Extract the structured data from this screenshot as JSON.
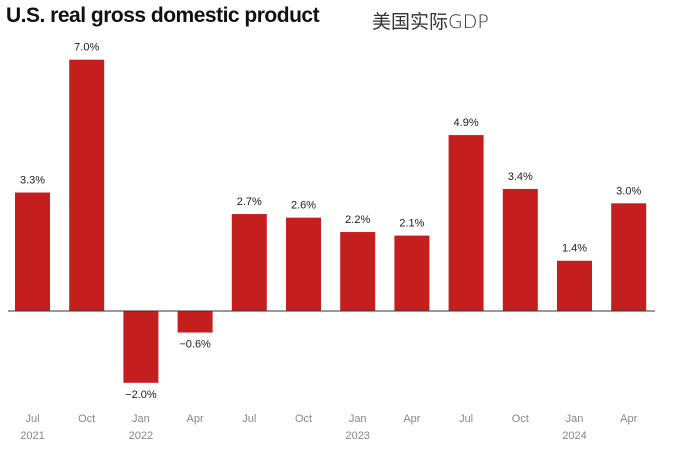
{
  "title": "U.S. real gross domestic product",
  "subtitle": "美国实际GDP",
  "chart_data": {
    "type": "bar",
    "title": "U.S. real gross domestic product",
    "subtitle": "美国实际GDP",
    "categories": [
      "Jul 2021",
      "Oct 2021",
      "Jan 2022",
      "Apr 2022",
      "Jul 2022",
      "Oct 2022",
      "Jan 2023",
      "Apr 2023",
      "Jul 2023",
      "Oct 2023",
      "Jan 2024",
      "Apr 2024"
    ],
    "tick_labels": [
      {
        "month": "Jul",
        "year": "2021"
      },
      {
        "month": "Oct",
        "year": ""
      },
      {
        "month": "Jan",
        "year": "2022"
      },
      {
        "month": "Apr",
        "year": ""
      },
      {
        "month": "Jul",
        "year": ""
      },
      {
        "month": "Oct",
        "year": ""
      },
      {
        "month": "Jan",
        "year": "2023"
      },
      {
        "month": "Apr",
        "year": ""
      },
      {
        "month": "Jul",
        "year": ""
      },
      {
        "month": "Oct",
        "year": ""
      },
      {
        "month": "Jan",
        "year": "2024"
      },
      {
        "month": "Apr",
        "year": ""
      }
    ],
    "values": [
      3.3,
      7.0,
      -2.0,
      -0.6,
      2.7,
      2.6,
      2.2,
      2.1,
      4.9,
      3.4,
      1.4,
      3.0
    ],
    "data_labels": [
      "3.3%",
      "7.0%",
      "−2.0%",
      "−0.6%",
      "2.7%",
      "2.6%",
      "2.2%",
      "2.1%",
      "4.9%",
      "3.4%",
      "1.4%",
      "3.0%"
    ],
    "xlabel": "",
    "ylabel": "",
    "ylim": [
      -2.0,
      7.0
    ],
    "grid": false,
    "bar_color": "#c41e1e",
    "zero_line_color": "#333333"
  }
}
